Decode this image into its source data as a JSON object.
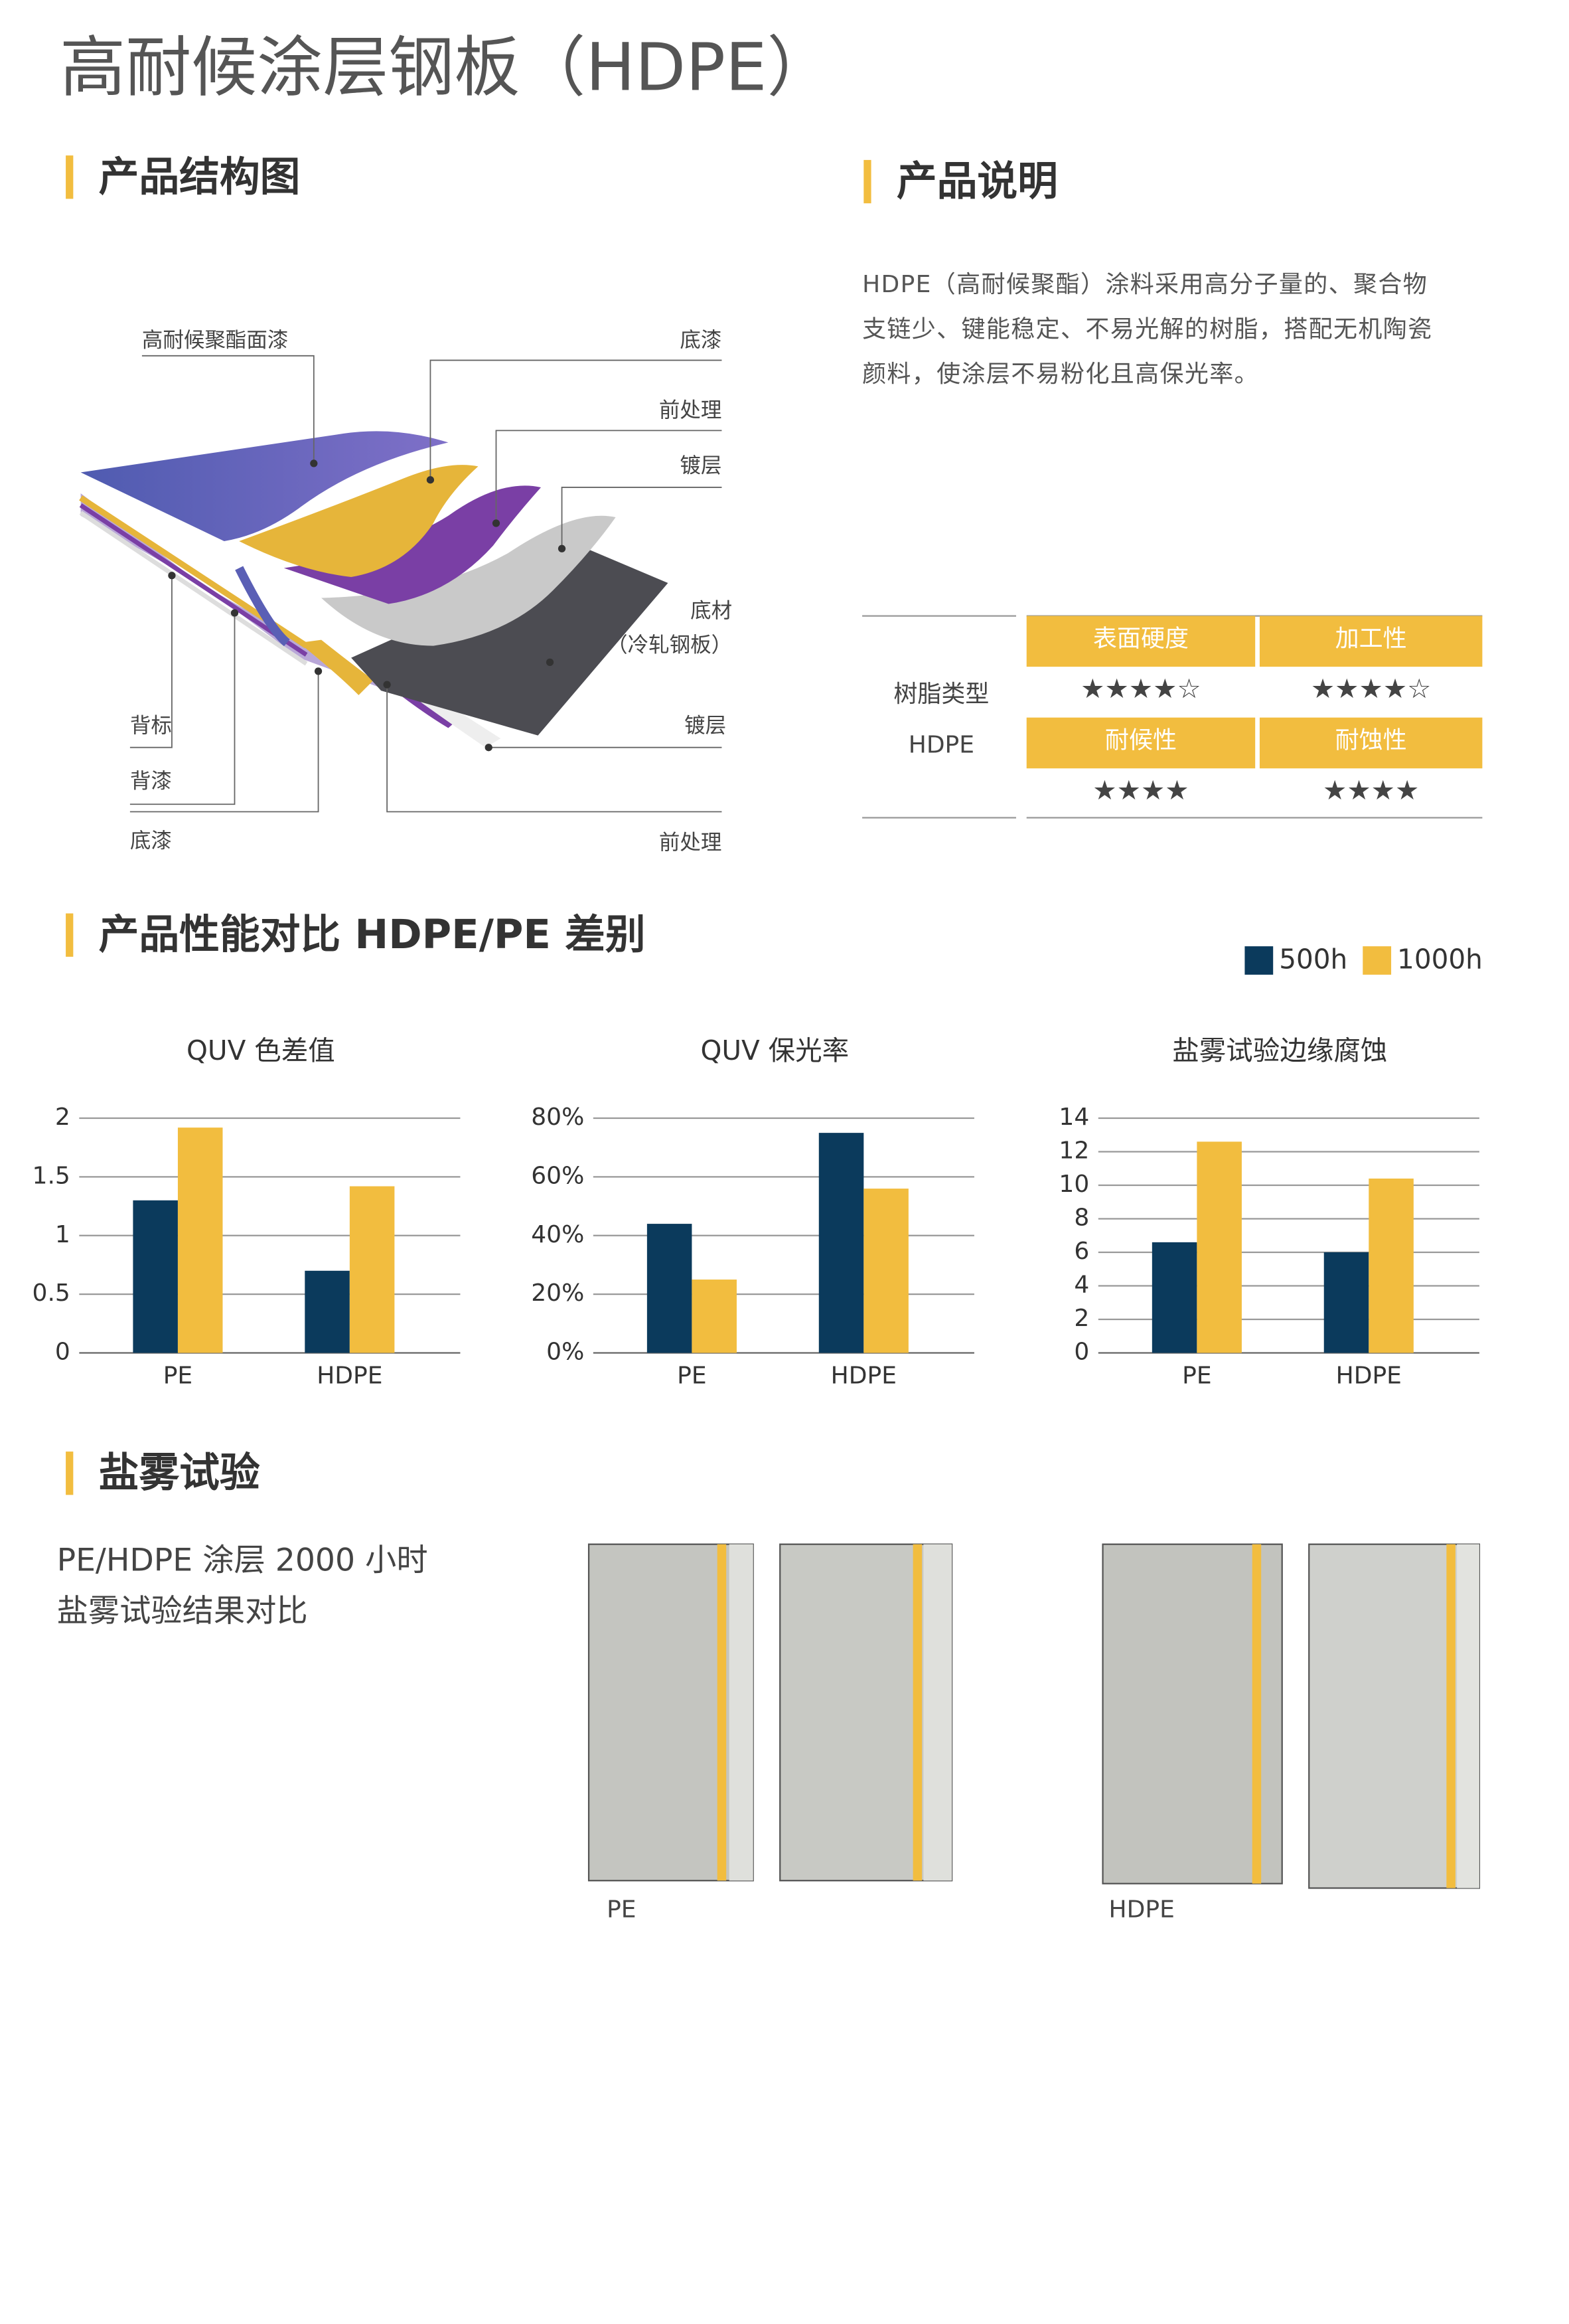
{
  "title": "高耐候涂层钢板（HDPE）",
  "structure": {
    "heading": "产品结构图",
    "labels": [
      "高耐候聚酯面漆",
      "底漆",
      "前处理",
      "镀层",
      "底材",
      "（冷轧钢板）",
      "镀层",
      "背标",
      "背漆",
      "底漆",
      "前处理"
    ]
  },
  "description": {
    "heading": "产品说明",
    "lines": [
      "HDPE（高耐候聚酯）涂料采用高分子量的、聚合物",
      "支链少、键能稳定、不易光解的树脂，搭配无机陶瓷",
      "颜料，使涂层不易粉化且高保光率。"
    ]
  },
  "table": {
    "row_label": "树脂类型",
    "resin": "HDPE",
    "headers": [
      "表面硬度",
      "加工性",
      "耐候性",
      "耐蚀性"
    ],
    "ratings": [
      "★★★★☆",
      "★★★★☆",
      "★★★★",
      "★★★★"
    ]
  },
  "comparison": {
    "heading": "产品性能对比 HDPE/PE 差别"
  },
  "chart_data": [
    {
      "type": "bar",
      "title": "QUV 色差值",
      "categories": [
        "PE",
        "HDPE"
      ],
      "series": [
        {
          "name": "500h",
          "color": "#0b3a5c",
          "values": [
            1.3,
            0.7
          ]
        },
        {
          "name": "1000h",
          "color": "#f2bd3f",
          "values": [
            1.92,
            1.42
          ]
        }
      ],
      "ylim": [
        0,
        2
      ],
      "yticks": [
        0,
        0.5,
        1,
        1.5,
        2
      ],
      "grid": true
    },
    {
      "type": "bar",
      "title": "QUV 保光率",
      "categories": [
        "PE",
        "HDPE"
      ],
      "series": [
        {
          "color": "#0b3a5c",
          "values": [
            44,
            75
          ]
        },
        {
          "color": "#f2bd3f",
          "values": [
            25,
            56
          ]
        }
      ],
      "ylim": [
        0,
        80
      ],
      "yticks": [
        {
          "value": 0,
          "label": "0%"
        },
        {
          "value": 20,
          "label": "20%"
        },
        {
          "value": 40,
          "label": "40%"
        },
        {
          "value": 60,
          "label": "60%"
        },
        {
          "value": 80,
          "label": "80%"
        }
      ],
      "grid": true
    },
    {
      "type": "bar",
      "title": "盐雾试验边缘腐蚀",
      "categories": [
        "PE",
        "HDPE"
      ],
      "series": [
        {
          "color": "#0b3a5c",
          "values": [
            6.6,
            6
          ]
        },
        {
          "color": "#f2bd3f",
          "values": [
            12.6,
            10.4
          ]
        }
      ],
      "ylim": [
        0,
        14
      ],
      "yticks": [
        0,
        2,
        4,
        6,
        8,
        10,
        12,
        14
      ],
      "grid": true
    }
  ],
  "salt_spray": {
    "heading": "盐雾试验",
    "lines": [
      "PE/HDPE 涂层 2000 小时",
      "盐雾试验结果对比"
    ],
    "photo_labels": [
      "PE",
      "HDPE"
    ]
  }
}
